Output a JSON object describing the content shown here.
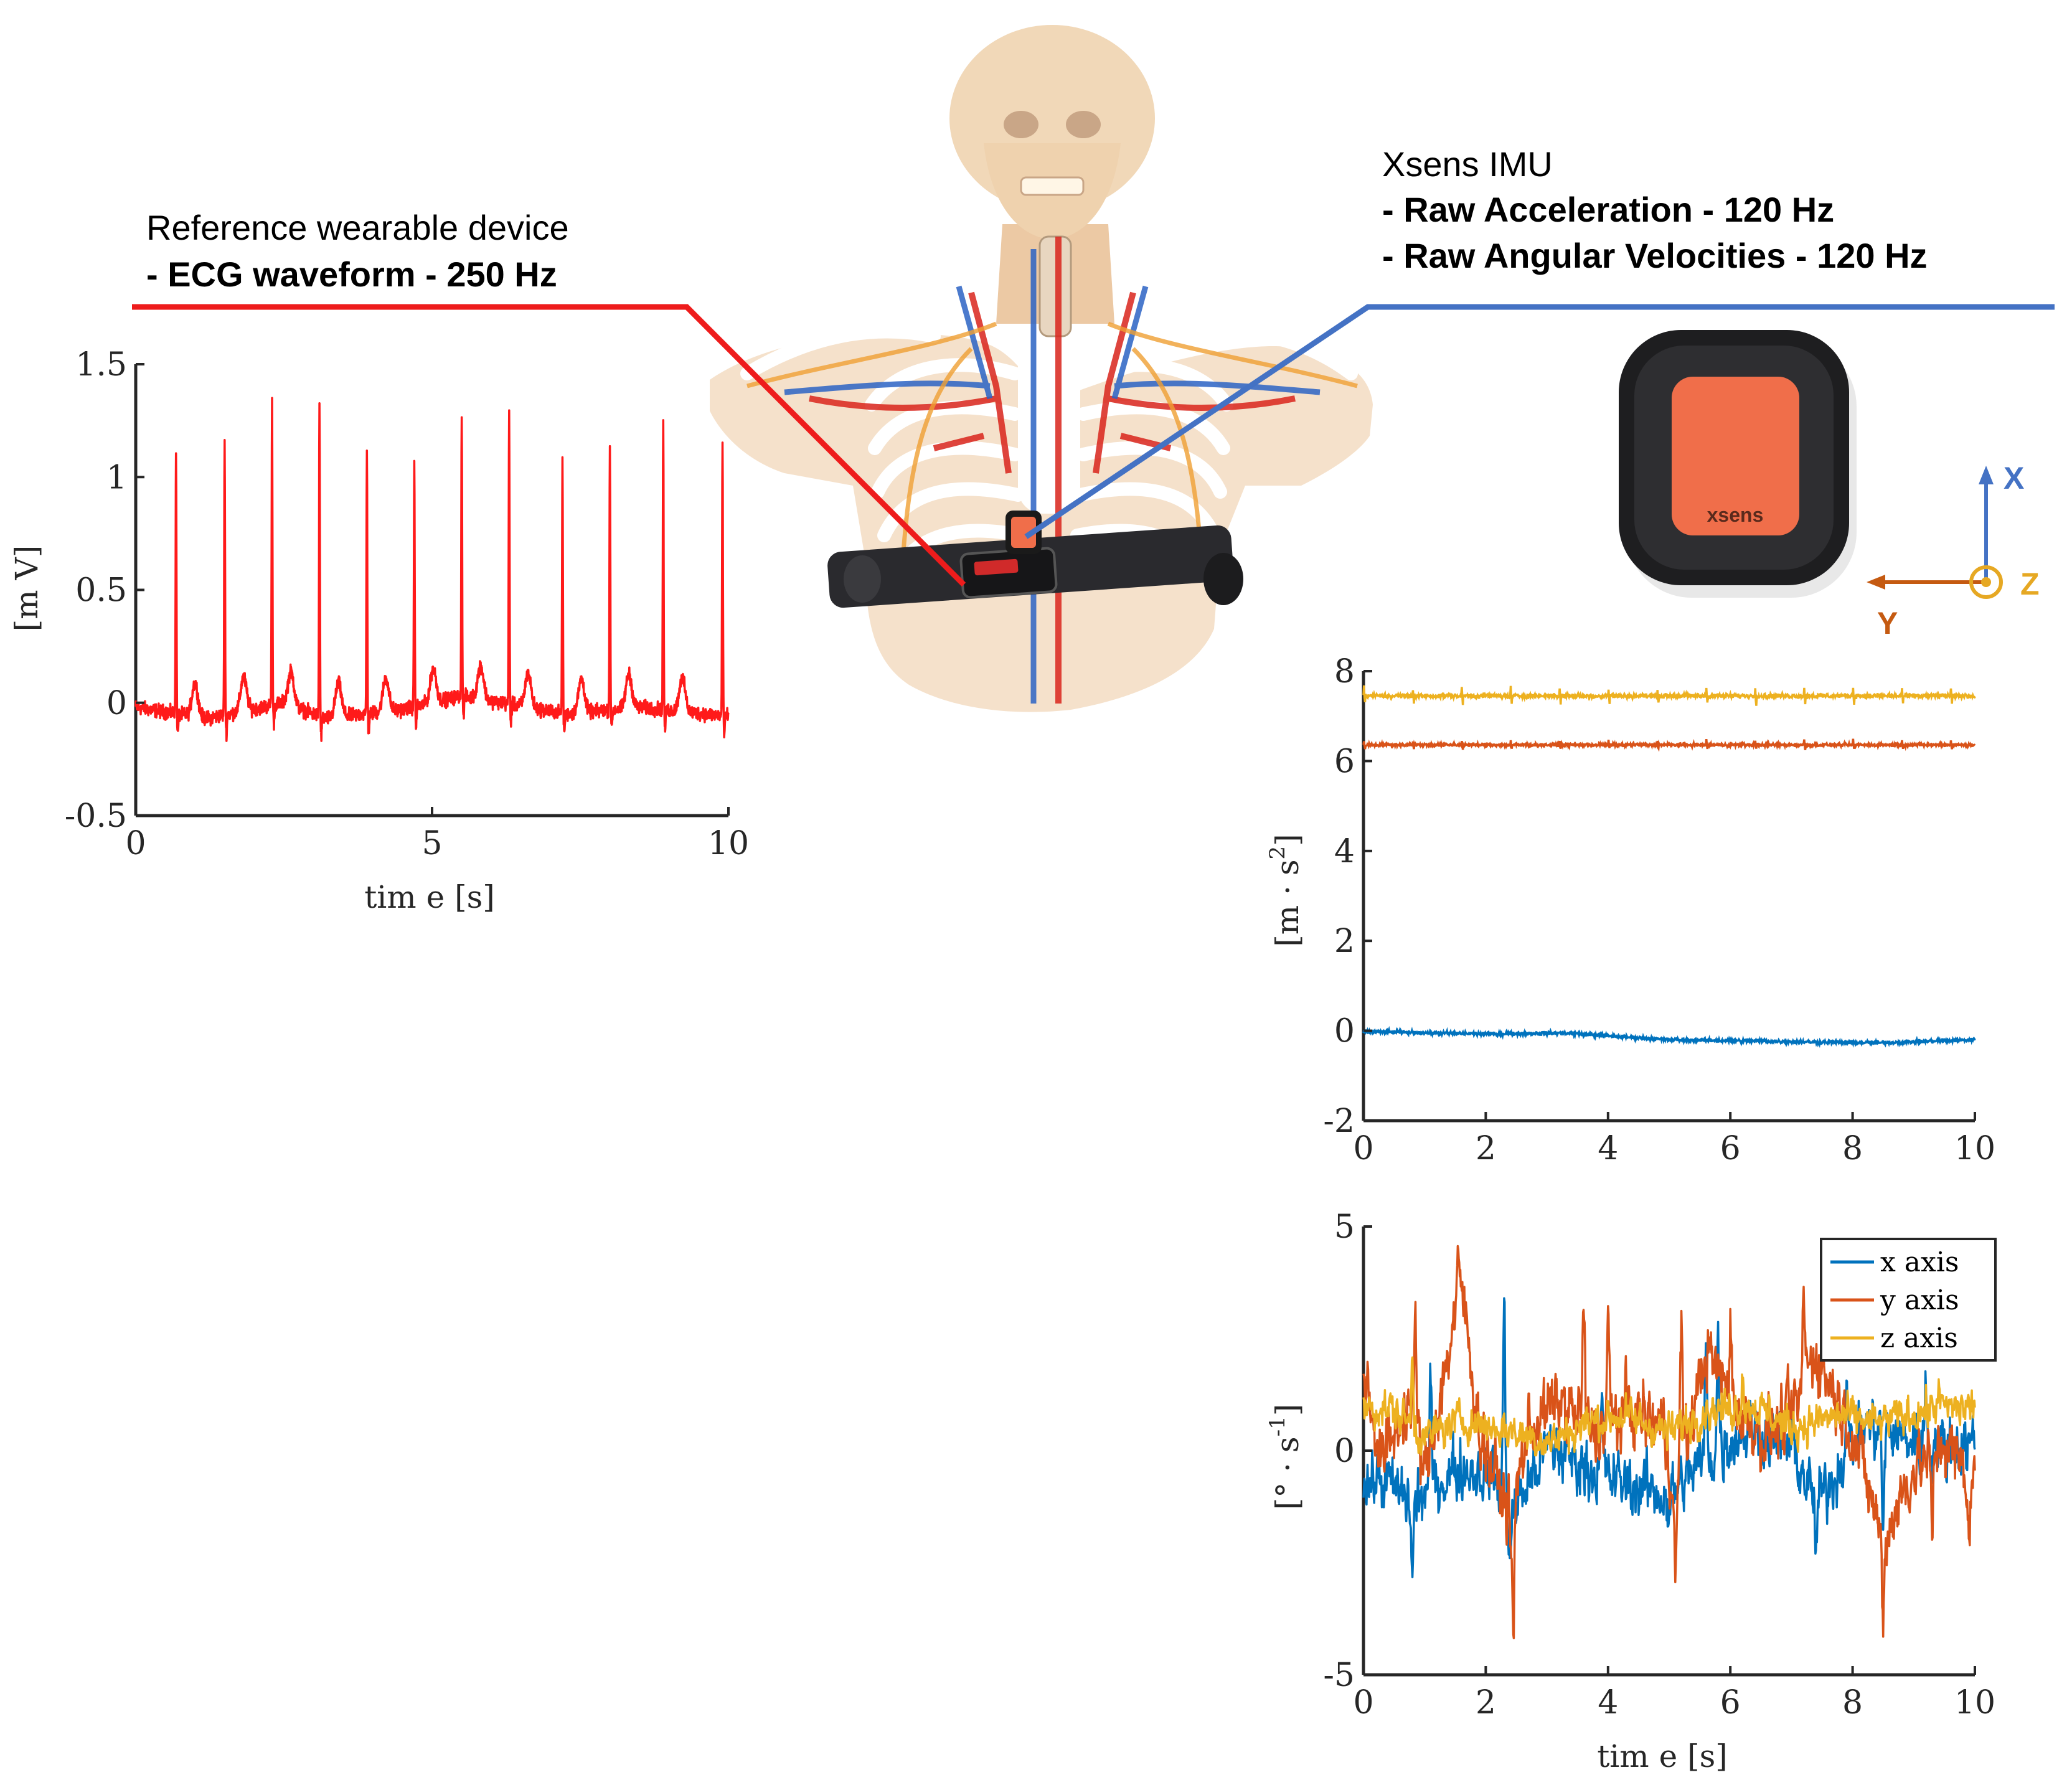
{
  "colors": {
    "ecg": "#ff1a1a",
    "leader_red": "#ee1c1c",
    "leader_blue": "#4472c4",
    "x_series": "#0072bd",
    "y_series": "#d95319",
    "z_series": "#edb120",
    "sensor_orange": "#f06e4a",
    "axis_x_arrow": "#4472c4",
    "axis_y_arrow": "#c55a11",
    "axis_z_arrow": "#e6a823"
  },
  "annotations": {
    "reference": {
      "title": "Reference wearable device",
      "line1": "- ECG waveform - 250 Hz"
    },
    "imu": {
      "title": "Xsens IMU",
      "line1": "- Raw Acceleration - 120 Hz",
      "line2": "- Raw Angular Velocities - 120 Hz"
    },
    "sensor_brand": "xsens",
    "axes_glyph": {
      "x": "X",
      "y": "Y",
      "z": "Z"
    }
  },
  "chart_data": [
    {
      "id": "ecg",
      "type": "line",
      "title": "",
      "xlabel": "tim e [s]",
      "ylabel": "[m V]",
      "xlim": [
        0,
        10
      ],
      "ylim": [
        -0.5,
        1.5
      ],
      "xticks": [
        0,
        5,
        10
      ],
      "yticks": [
        -0.5,
        0,
        0.5,
        1,
        1.5
      ],
      "xtick_labels": [
        "0",
        "5",
        "10"
      ],
      "ytick_labels": [
        "-0.5",
        "0",
        "0.5",
        "1",
        "1.5"
      ],
      "grid": false,
      "series": [
        {
          "color": "#ff1a1a",
          "baseline": [
            [
              0,
              -0.02
            ],
            [
              1.2,
              -0.07
            ],
            [
              2.5,
              0.0
            ],
            [
              3.2,
              -0.07
            ],
            [
              4.5,
              -0.03
            ],
            [
              5.5,
              0.03
            ],
            [
              6.6,
              -0.02
            ],
            [
              7.3,
              -0.05
            ],
            [
              8.5,
              -0.02
            ],
            [
              10,
              -0.06
            ]
          ],
          "r_peaks": [
            [
              0.68,
              1.11
            ],
            [
              1.5,
              1.15
            ],
            [
              2.3,
              1.34
            ],
            [
              3.1,
              1.32
            ],
            [
              3.9,
              1.12
            ],
            [
              4.7,
              1.08
            ],
            [
              5.5,
              1.29
            ],
            [
              6.3,
              1.3
            ],
            [
              7.2,
              1.08
            ],
            [
              8.0,
              1.13
            ],
            [
              8.9,
              1.24
            ],
            [
              9.9,
              1.16
            ]
          ],
          "t_wave_height": 0.15
        }
      ]
    },
    {
      "id": "acceleration",
      "type": "line",
      "title": "",
      "xlabel": "",
      "ylabel": "[m · s2]",
      "xlim": [
        0,
        10
      ],
      "ylim": [
        -2,
        8
      ],
      "xticks": [
        0,
        2,
        4,
        6,
        8,
        10
      ],
      "yticks": [
        -2,
        0,
        2,
        4,
        6,
        8
      ],
      "xtick_labels": [
        "0",
        "2",
        "4",
        "6",
        "8",
        "10"
      ],
      "ytick_labels": [
        "-2",
        "0",
        "2",
        "4",
        "6",
        "8"
      ],
      "grid": false,
      "series": [
        {
          "axis": "x",
          "color": "#0072bd",
          "trend": [
            [
              0,
              -0.02
            ],
            [
              2,
              -0.07
            ],
            [
              3.3,
              -0.05
            ],
            [
              5,
              -0.2
            ],
            [
              8.4,
              -0.27
            ],
            [
              10,
              -0.2
            ]
          ],
          "noise": 0.04
        },
        {
          "axis": "y",
          "color": "#d95319",
          "trend": [
            [
              0,
              6.36
            ],
            [
              10,
              6.36
            ]
          ],
          "noise": 0.035
        },
        {
          "axis": "z",
          "color": "#edb120",
          "trend": [
            [
              0,
              7.45
            ],
            [
              10,
              7.45
            ]
          ],
          "noise": 0.05
        }
      ]
    },
    {
      "id": "angular_velocity",
      "type": "line",
      "title": "",
      "xlabel": "tim e [s]",
      "ylabel": "[° · s-1]",
      "xlim": [
        0,
        10
      ],
      "ylim": [
        -5,
        5
      ],
      "xticks": [
        0,
        2,
        4,
        6,
        8,
        10
      ],
      "yticks": [
        -5,
        0,
        5
      ],
      "xtick_labels": [
        "0",
        "2",
        "4",
        "6",
        "8",
        "10"
      ],
      "ytick_labels": [
        "-5",
        "0",
        "5"
      ],
      "grid": false,
      "legend_position": "top-right",
      "series": [
        {
          "name": "x axis",
          "color": "#0072bd",
          "anchors": [
            [
              0,
              -0.8
            ],
            [
              0.3,
              -0.6
            ],
            [
              0.8,
              -1.2
            ],
            [
              1.5,
              -0.4
            ],
            [
              2.1,
              -0.5
            ],
            [
              2.4,
              -1.5
            ],
            [
              3,
              0.1
            ],
            [
              4.2,
              -0.7
            ],
            [
              5,
              -1.0
            ],
            [
              5.5,
              -0.3
            ],
            [
              6.3,
              0.5
            ],
            [
              7.0,
              0.1
            ],
            [
              7.4,
              -1.2
            ],
            [
              8.2,
              0.6
            ],
            [
              9.0,
              0.2
            ],
            [
              9.5,
              0.1
            ],
            [
              10,
              0.2
            ]
          ],
          "spikes": [
            [
              0.8,
              -2.8
            ],
            [
              1.1,
              1.4
            ],
            [
              2.3,
              3.1
            ],
            [
              2.4,
              -2.2
            ],
            [
              3.9,
              1.0
            ],
            [
              5.0,
              -1.5
            ],
            [
              5.6,
              2.0
            ],
            [
              5.8,
              2.5
            ],
            [
              7.4,
              -2.2
            ],
            [
              7.9,
              1.5
            ],
            [
              8.5,
              -1.8
            ],
            [
              9.2,
              1.6
            ]
          ]
        },
        {
          "name": "y axis",
          "color": "#d95319",
          "anchors": [
            [
              0,
              1.8
            ],
            [
              0.3,
              -0.2
            ],
            [
              0.8,
              1.2
            ],
            [
              1.0,
              -0.6
            ],
            [
              1.6,
              3.7
            ],
            [
              1.9,
              0.4
            ],
            [
              2.4,
              -1.5
            ],
            [
              2.7,
              0.5
            ],
            [
              3.2,
              1.1
            ],
            [
              3.8,
              0.4
            ],
            [
              4.3,
              0.9
            ],
            [
              4.9,
              0.6
            ],
            [
              5.1,
              -1.0
            ],
            [
              5.6,
              2.2
            ],
            [
              6.2,
              0.8
            ],
            [
              6.6,
              0.3
            ],
            [
              7.1,
              1.0
            ],
            [
              7.4,
              2.2
            ],
            [
              8.0,
              0.4
            ],
            [
              8.5,
              -2.0
            ],
            [
              9.0,
              -0.4
            ],
            [
              9.5,
              0.2
            ],
            [
              10,
              -0.8
            ]
          ],
          "spikes": [
            [
              0.85,
              2.4
            ],
            [
              1.55,
              4.0
            ],
            [
              2.45,
              -4.4
            ],
            [
              3.6,
              3.3
            ],
            [
              4.0,
              3.0
            ],
            [
              5.1,
              -3.1
            ],
            [
              5.2,
              3.3
            ],
            [
              6.0,
              2.9
            ],
            [
              7.2,
              3.3
            ],
            [
              7.25,
              2.2
            ],
            [
              8.5,
              -3.7
            ],
            [
              9.3,
              -2.1
            ],
            [
              9.9,
              -1.9
            ]
          ]
        },
        {
          "name": "z axis",
          "color": "#edb120",
          "anchors": [
            [
              0,
              1.0
            ],
            [
              0.5,
              0.9
            ],
            [
              1.0,
              0.3
            ],
            [
              1.6,
              0.7
            ],
            [
              2.2,
              0.5
            ],
            [
              3.1,
              0.2
            ],
            [
              3.6,
              0.6
            ],
            [
              4.2,
              0.8
            ],
            [
              5.0,
              0.4
            ],
            [
              5.6,
              0.9
            ],
            [
              6.4,
              1.0
            ],
            [
              7.0,
              0.5
            ],
            [
              7.8,
              0.8
            ],
            [
              8.4,
              0.6
            ],
            [
              9.2,
              0.9
            ],
            [
              10,
              1.0
            ]
          ],
          "spikes": [
            [
              0.8,
              2.0
            ],
            [
              6.2,
              1.7
            ],
            [
              9.4,
              1.5
            ]
          ]
        }
      ]
    }
  ]
}
